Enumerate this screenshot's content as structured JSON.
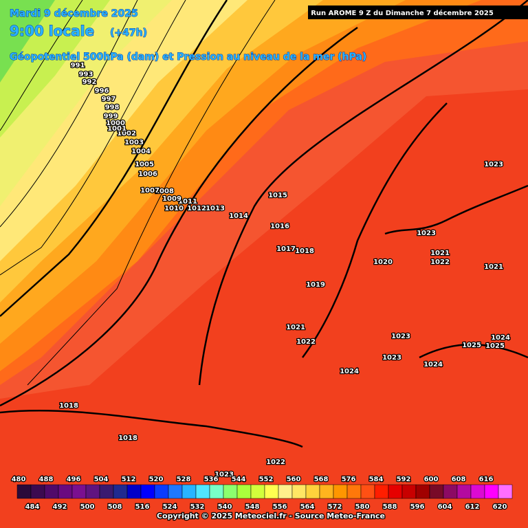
{
  "header": {
    "date": "Mardi 9 décembre 2025",
    "time": "9:00 locale",
    "lead": "(+47h)",
    "subtitle": "Géopotentiel 500hPa (dam) et Pression au niveau de la mer (hPa)",
    "run": "Run AROME 9 Z du Dimanche 7 décembre 2025"
  },
  "isobar_labels": [
    "1015",
    "1016",
    "1017",
    "1018",
    "1019",
    "1014",
    "1013",
    "1012",
    "1011",
    "1010",
    "1009",
    "1008",
    "1007",
    "1006",
    "1005",
    "1004",
    "1003",
    "1002",
    "1001",
    "1000",
    "999",
    "998",
    "997",
    "996",
    "992",
    "993",
    "991",
    "1023",
    "1023",
    "1021",
    "1022",
    "1020",
    "1021",
    "1021",
    "1022",
    "1023",
    "1023",
    "1024",
    "1024",
    "1025",
    "1024",
    "1025",
    "1018",
    "1018",
    "1022",
    "1023"
  ],
  "colorbar": {
    "values": [
      480,
      484,
      488,
      492,
      496,
      500,
      504,
      508,
      512,
      516,
      520,
      524,
      528,
      532,
      536,
      540,
      544,
      548,
      552,
      556,
      560,
      564,
      568,
      572,
      576,
      580,
      584,
      588,
      592,
      596,
      600,
      604,
      608,
      612,
      616,
      620
    ],
    "colors": [
      "#2a0a3a",
      "#3c0a50",
      "#500a6a",
      "#6a0a80",
      "#7a1090",
      "#601480",
      "#3a1a70",
      "#202a90",
      "#0000c8",
      "#0000ff",
      "#0a3cff",
      "#1e78ff",
      "#28b4ff",
      "#50e6ff",
      "#78ffc8",
      "#8cff6e",
      "#aaff3c",
      "#d2ff3c",
      "#ffff50",
      "#fff08c",
      "#ffe664",
      "#ffd23c",
      "#ffb41e",
      "#ff9600",
      "#ff780a",
      "#ff5014",
      "#ff1e00",
      "#e60000",
      "#c80000",
      "#a00000",
      "#780a28",
      "#8c0a64",
      "#b40aa0",
      "#dc0ad2",
      "#ff00ff",
      "#ff6eff"
    ]
  },
  "footer": {
    "copyright": "Copyright © 2025 Meteociel.fr - Source Meteo-France"
  }
}
